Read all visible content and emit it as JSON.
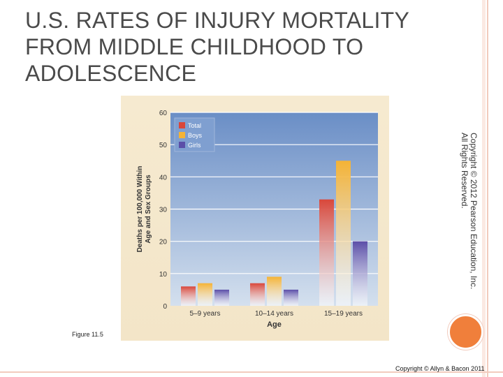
{
  "page": {
    "title": "U.S. RATES OF INJURY MORTALITY FROM MIDDLE CHILDHOOD TO ADOLESCENCE",
    "figure_label": "Figure 11.5",
    "side_copyright_line1": "Copyright © 2012 Pearson Education, Inc.",
    "side_copyright_line2": "All Rights Reserved.",
    "footer_copyright": "Copyright © Allyn & Bacon 2011",
    "accent_color": "#f07f3b"
  },
  "chart_data": {
    "type": "bar",
    "title": "",
    "xlabel": "Age",
    "ylabel_line1": "Deaths per 100,000 Within",
    "ylabel_line2": "Age and Sex Groups",
    "categories": [
      "5–9 years",
      "10–14 years",
      "15–19 years"
    ],
    "series": [
      {
        "name": "Total",
        "color": "#d9473a",
        "values": [
          6,
          7,
          33
        ]
      },
      {
        "name": "Boys",
        "color": "#f5b335",
        "values": [
          7,
          9,
          45
        ]
      },
      {
        "name": "Girls",
        "color": "#5b4ea8",
        "values": [
          5,
          5,
          20
        ]
      }
    ],
    "ylim": [
      0,
      60
    ],
    "yticks": [
      0,
      10,
      20,
      30,
      40,
      50,
      60
    ],
    "grid": true,
    "legend_position": "top-left"
  }
}
